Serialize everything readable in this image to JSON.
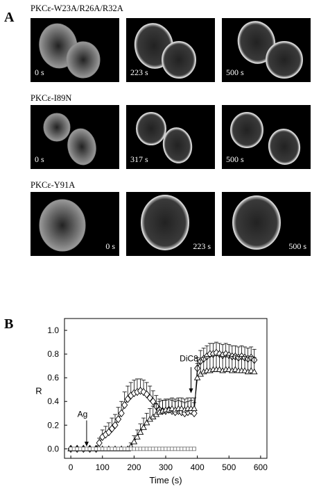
{
  "panel_a": {
    "letter": "A",
    "rows": [
      {
        "label": "PKCε-W23A/R26A/R32A",
        "times": [
          "0 s",
          "223 s",
          "500 s"
        ],
        "time_align": "left"
      },
      {
        "label": "PKCε-I89N",
        "times": [
          "0 s",
          "317 s",
          "500 s"
        ],
        "time_align": "left"
      },
      {
        "label": "PKCε-Y91A",
        "times": [
          "0 s",
          "223 s",
          "500 s"
        ],
        "time_align": "right"
      }
    ]
  },
  "panel_b": {
    "letter": "B",
    "annotations": {
      "ag": "Ag",
      "dic8": "DiC8"
    }
  },
  "chart_data": {
    "type": "line",
    "xlabel": "Time (s)",
    "ylabel": "R",
    "xlim": [
      -20,
      620
    ],
    "ylim": [
      -0.08,
      1.1
    ],
    "xticks": [
      0,
      100,
      200,
      300,
      400,
      500,
      600
    ],
    "yticks": [
      0.0,
      0.2,
      0.4,
      0.6,
      0.8,
      1.0
    ],
    "ytick_labels": [
      "0.0",
      "0.2",
      "0.4",
      "0.6",
      "0.8",
      "1.0"
    ],
    "series": [
      {
        "marker": "diamond",
        "x": [
          0,
          20,
          40,
          60,
          80,
          90,
          100,
          110,
          120,
          130,
          140,
          150,
          160,
          170,
          180,
          190,
          200,
          210,
          220,
          230,
          240,
          250,
          260,
          270,
          280,
          290,
          300,
          310,
          320,
          330,
          340,
          350,
          360,
          370,
          380,
          390,
          400,
          410,
          420,
          430,
          440,
          450,
          460,
          470,
          480,
          490,
          500,
          510,
          520,
          530,
          540,
          550,
          560,
          570,
          580
        ],
        "y": [
          0,
          0,
          0,
          0,
          0,
          0.05,
          0.1,
          0.12,
          0.14,
          0.17,
          0.2,
          0.25,
          0.3,
          0.37,
          0.42,
          0.45,
          0.47,
          0.48,
          0.49,
          0.48,
          0.46,
          0.43,
          0.4,
          0.36,
          0.33,
          0.32,
          0.32,
          0.33,
          0.32,
          0.31,
          0.32,
          0.31,
          0.3,
          0.31,
          0.32,
          0.3,
          0.68,
          0.74,
          0.76,
          0.78,
          0.8,
          0.8,
          0.81,
          0.8,
          0.79,
          0.8,
          0.79,
          0.78,
          0.78,
          0.77,
          0.78,
          0.77,
          0.76,
          0.77,
          0.75
        ],
        "err": [
          0,
          0,
          0,
          0,
          0,
          0.04,
          0.06,
          0.07,
          0.08,
          0.09,
          0.09,
          0.1,
          0.1,
          0.11,
          0.11,
          0.11,
          0.11,
          0.11,
          0.1,
          0.1,
          0.1,
          0.1,
          0.09,
          0.09,
          0.09,
          0.09,
          0.09,
          0.09,
          0.09,
          0.09,
          0.09,
          0.09,
          0.09,
          0.09,
          0.09,
          0.09,
          0.09,
          0.09,
          0.09,
          0.09,
          0.09,
          0.09,
          0.09,
          0.09,
          0.09,
          0.09,
          0.09,
          0.09,
          0.09,
          0.09,
          0.09,
          0.09,
          0.09,
          0.09,
          0.09
        ]
      },
      {
        "marker": "triangle",
        "x": [
          0,
          20,
          40,
          60,
          80,
          100,
          120,
          140,
          160,
          180,
          190,
          200,
          210,
          220,
          230,
          240,
          250,
          260,
          270,
          280,
          290,
          300,
          310,
          320,
          330,
          340,
          350,
          360,
          370,
          380,
          390,
          400,
          410,
          420,
          430,
          440,
          450,
          460,
          470,
          480,
          490,
          500,
          510,
          520,
          530,
          540,
          550,
          560,
          570,
          580
        ],
        "y": [
          0,
          0,
          0,
          0,
          0,
          0,
          0,
          0,
          0,
          0,
          0.02,
          0.06,
          0.1,
          0.14,
          0.18,
          0.22,
          0.25,
          0.27,
          0.29,
          0.31,
          0.32,
          0.33,
          0.33,
          0.34,
          0.33,
          0.34,
          0.34,
          0.33,
          0.34,
          0.34,
          0.34,
          0.6,
          0.63,
          0.65,
          0.66,
          0.66,
          0.67,
          0.67,
          0.67,
          0.66,
          0.67,
          0.67,
          0.66,
          0.67,
          0.66,
          0.66,
          0.66,
          0.65,
          0.66,
          0.65
        ],
        "err": [
          0,
          0,
          0,
          0,
          0,
          0,
          0,
          0,
          0,
          0,
          0.03,
          0.05,
          0.06,
          0.07,
          0.08,
          0.08,
          0.09,
          0.09,
          0.09,
          0.09,
          0.09,
          0.09,
          0.09,
          0.09,
          0.09,
          0.09,
          0.09,
          0.09,
          0.09,
          0.09,
          0.09,
          0.12,
          0.12,
          0.12,
          0.12,
          0.12,
          0.12,
          0.12,
          0.12,
          0.12,
          0.12,
          0.12,
          0.12,
          0.12,
          0.12,
          0.12,
          0.12,
          0.12,
          0.12,
          0.12
        ]
      },
      {
        "marker": "square",
        "x": [
          0,
          10,
          20,
          30,
          40,
          50,
          60,
          70,
          80,
          90,
          100,
          110,
          120,
          130,
          140,
          150,
          160,
          170,
          180,
          190,
          200,
          210,
          220,
          230,
          240,
          250,
          260,
          270,
          280,
          290,
          300,
          310,
          320,
          330,
          340,
          350,
          360,
          370,
          380,
          390
        ],
        "y": [
          0,
          0,
          0,
          0,
          0,
          0,
          0,
          0,
          0,
          0,
          0,
          0,
          0,
          0,
          0,
          0,
          0,
          0,
          0,
          0,
          0,
          0,
          0,
          0,
          0,
          0,
          0,
          0,
          0,
          0,
          0,
          0,
          0,
          0,
          0,
          0,
          0,
          0,
          0,
          0
        ],
        "err": []
      }
    ]
  }
}
